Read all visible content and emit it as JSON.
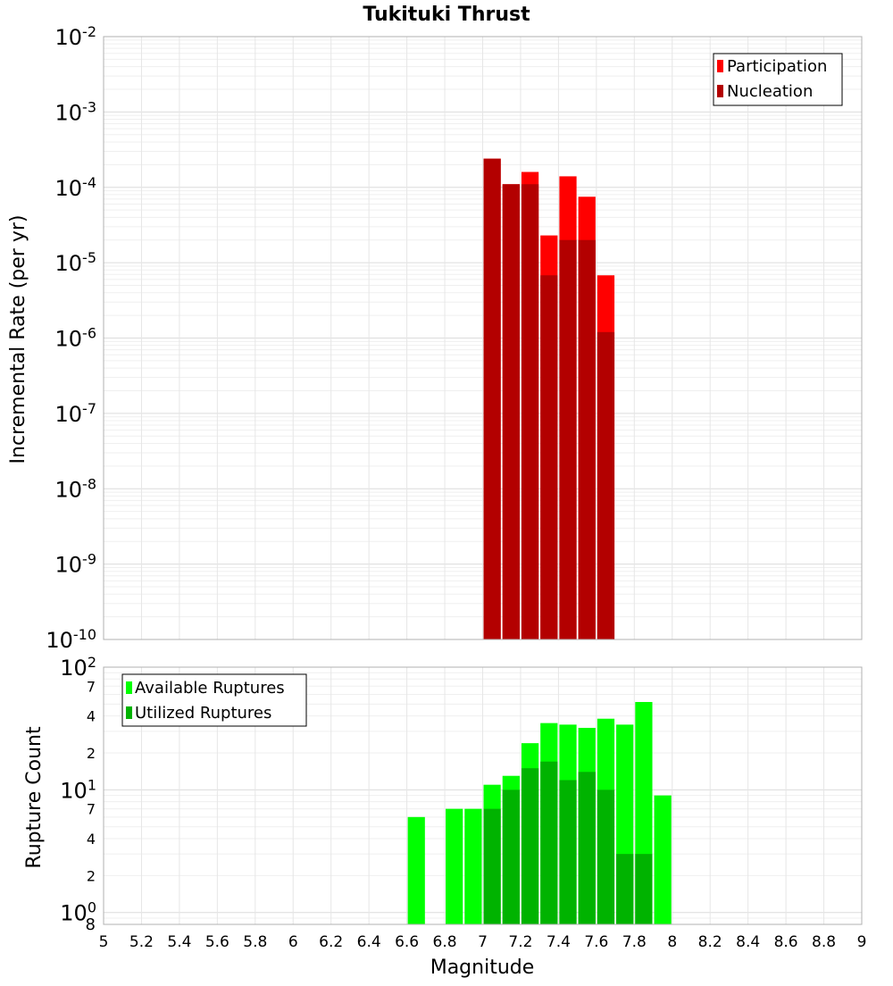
{
  "chart_data": [
    {
      "type": "bar",
      "scale": "log",
      "title": "Tukituki Thrust",
      "ylabel": "Incremental Rate (per yr)",
      "xlabel": "Magnitude",
      "xlim": [
        5,
        9
      ],
      "ylim_exponents": [
        -10,
        -2
      ],
      "grid": true,
      "legend_position": "top-right",
      "bar_width": 0.1,
      "series": [
        {
          "name": "Participation",
          "color": "#ff0000",
          "x": [
            7.05,
            7.15,
            7.25,
            7.35,
            7.45,
            7.55,
            7.65
          ],
          "values": [
            0.00024,
            0.00011,
            0.00016,
            2.3e-05,
            0.00014,
            7.5e-05,
            6.8e-06
          ]
        },
        {
          "name": "Nucleation",
          "color": "#b30000",
          "x": [
            7.05,
            7.15,
            7.25,
            7.35,
            7.45,
            7.55,
            7.65
          ],
          "values": [
            0.00024,
            0.00011,
            0.00011,
            6.8e-06,
            2e-05,
            2e-05,
            1.2e-06
          ]
        }
      ]
    },
    {
      "type": "bar",
      "scale": "log",
      "ylabel": "Rupture Count",
      "xlabel": "Magnitude",
      "xlim": [
        5,
        9
      ],
      "ylim": [
        0.8,
        100
      ],
      "grid": true,
      "legend_position": "top-left",
      "bar_width": 0.1,
      "series": [
        {
          "name": "Available Ruptures",
          "color": "#00ff00",
          "x": [
            6.65,
            6.85,
            6.95,
            7.05,
            7.15,
            7.25,
            7.35,
            7.45,
            7.55,
            7.65,
            7.75,
            7.85,
            7.95
          ],
          "values": [
            6,
            7,
            7,
            11,
            13,
            24,
            35,
            34,
            32,
            38,
            34,
            52,
            9
          ]
        },
        {
          "name": "Utilized Ruptures",
          "color": "#00b300",
          "x": [
            7.05,
            7.15,
            7.25,
            7.35,
            7.45,
            7.55,
            7.65,
            7.75,
            7.85
          ],
          "values": [
            7,
            10,
            15,
            17,
            12,
            14,
            10,
            3,
            3
          ]
        }
      ]
    }
  ],
  "x_ticks": [
    "5",
    "5.2",
    "5.4",
    "5.6",
    "5.8",
    "6",
    "6.2",
    "6.4",
    "6.6",
    "6.8",
    "7",
    "7.2",
    "7.4",
    "7.6",
    "7.8",
    "8",
    "8.2",
    "8.4",
    "8.6",
    "8.8",
    "9"
  ],
  "top_y_ticks": [
    {
      "base": "10",
      "exp": "-10"
    },
    {
      "base": "10",
      "exp": "-9"
    },
    {
      "base": "10",
      "exp": "-8"
    },
    {
      "base": "10",
      "exp": "-7"
    },
    {
      "base": "10",
      "exp": "-6"
    },
    {
      "base": "10",
      "exp": "-5"
    },
    {
      "base": "10",
      "exp": "-4"
    },
    {
      "base": "10",
      "exp": "-3"
    },
    {
      "base": "10",
      "exp": "-2"
    }
  ],
  "bottom_y_ticks": [
    {
      "value": 1,
      "base": "10",
      "exp": "0",
      "major": true
    },
    {
      "value": 2,
      "label": "2"
    },
    {
      "value": 4,
      "label": "4"
    },
    {
      "value": 7,
      "label": "7"
    },
    {
      "value": 10,
      "base": "10",
      "exp": "1",
      "major": true
    },
    {
      "value": 20,
      "label": "2"
    },
    {
      "value": 40,
      "label": "4"
    },
    {
      "value": 70,
      "label": "7"
    },
    {
      "value": 100,
      "base": "10",
      "exp": "2",
      "major": true
    }
  ],
  "bottom_corner_label": "8"
}
